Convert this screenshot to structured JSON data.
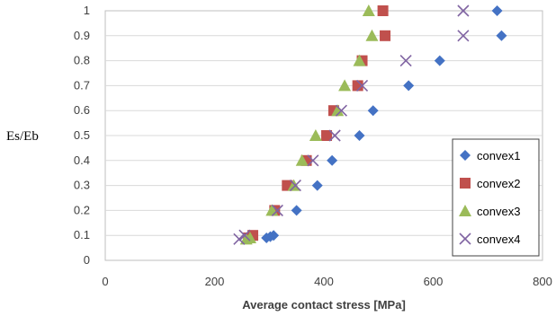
{
  "chart_data": {
    "type": "scatter",
    "xlabel": "Average contact stress [MPa]",
    "ylabel": "Es/Eb",
    "xlim": [
      0,
      800
    ],
    "ylim": [
      0,
      1
    ],
    "x_ticks": [
      "0",
      "200",
      "400",
      "600",
      "800"
    ],
    "y_ticks": [
      "0",
      "0.1",
      "0.2",
      "0.3",
      "0.4",
      "0.5",
      "0.6",
      "0.7",
      "0.8",
      "0.9",
      "1"
    ],
    "legend_placement": "right",
    "series": [
      {
        "name": "convex1",
        "marker": "diamond",
        "color": "#4472c4",
        "points": [
          [
            295,
            0.09
          ],
          [
            302,
            0.095
          ],
          [
            308,
            0.1
          ],
          [
            350,
            0.2
          ],
          [
            388,
            0.3
          ],
          [
            415,
            0.4
          ],
          [
            465,
            0.5
          ],
          [
            490,
            0.6
          ],
          [
            555,
            0.7
          ],
          [
            612,
            0.8
          ],
          [
            725,
            0.9
          ],
          [
            717,
            1.0
          ]
        ]
      },
      {
        "name": "convex2",
        "marker": "square",
        "color": "#c0504d",
        "points": [
          [
            262,
            0.09
          ],
          [
            270,
            0.1
          ],
          [
            310,
            0.2
          ],
          [
            333,
            0.3
          ],
          [
            368,
            0.4
          ],
          [
            405,
            0.5
          ],
          [
            418,
            0.6
          ],
          [
            462,
            0.7
          ],
          [
            470,
            0.8
          ],
          [
            512,
            0.9
          ],
          [
            508,
            1.0
          ]
        ]
      },
      {
        "name": "convex3",
        "marker": "triangle",
        "color": "#9bbb59",
        "points": [
          [
            258,
            0.085
          ],
          [
            265,
            0.09
          ],
          [
            305,
            0.2
          ],
          [
            345,
            0.3
          ],
          [
            360,
            0.4
          ],
          [
            385,
            0.5
          ],
          [
            425,
            0.6
          ],
          [
            438,
            0.7
          ],
          [
            465,
            0.8
          ],
          [
            488,
            0.9
          ],
          [
            482,
            1.0
          ]
        ]
      },
      {
        "name": "convex4",
        "marker": "x",
        "color": "#8064a2",
        "points": [
          [
            245,
            0.085
          ],
          [
            255,
            0.1
          ],
          [
            315,
            0.2
          ],
          [
            348,
            0.3
          ],
          [
            380,
            0.4
          ],
          [
            420,
            0.5
          ],
          [
            432,
            0.6
          ],
          [
            470,
            0.7
          ],
          [
            550,
            0.8
          ],
          [
            655,
            0.9
          ],
          [
            655,
            1.0
          ]
        ]
      }
    ]
  }
}
